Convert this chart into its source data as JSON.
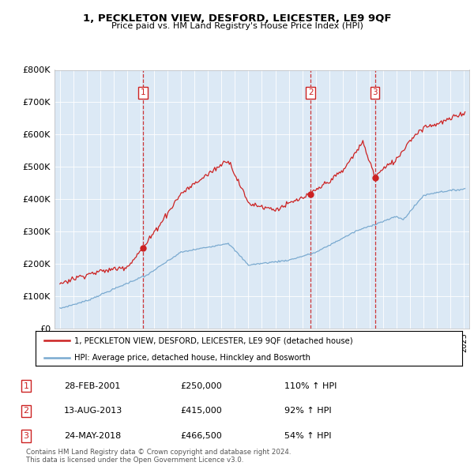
{
  "title": "1, PECKLETON VIEW, DESFORD, LEICESTER, LE9 9QF",
  "subtitle": "Price paid vs. HM Land Registry's House Price Index (HPI)",
  "background_color": "#ffffff",
  "plot_background_color": "#dce9f5",
  "red_line_color": "#cc2222",
  "blue_line_color": "#7aaad0",
  "grid_color": "#ffffff",
  "vline_color": "#cc2222",
  "sale_date_floats": [
    2001.16,
    2013.62,
    2018.39
  ],
  "sale_prices": [
    250000,
    415000,
    466500
  ],
  "sale_labels": [
    "1",
    "2",
    "3"
  ],
  "legend_label_red": "1, PECKLETON VIEW, DESFORD, LEICESTER, LE9 9QF (detached house)",
  "legend_label_blue": "HPI: Average price, detached house, Hinckley and Bosworth",
  "table_rows": [
    [
      "1",
      "28-FEB-2001",
      "£250,000",
      "110% ↑ HPI"
    ],
    [
      "2",
      "13-AUG-2013",
      "£415,000",
      "92% ↑ HPI"
    ],
    [
      "3",
      "24-MAY-2018",
      "£466,500",
      "54% ↑ HPI"
    ]
  ],
  "footnote": "Contains HM Land Registry data © Crown copyright and database right 2024.\nThis data is licensed under the Open Government Licence v3.0."
}
